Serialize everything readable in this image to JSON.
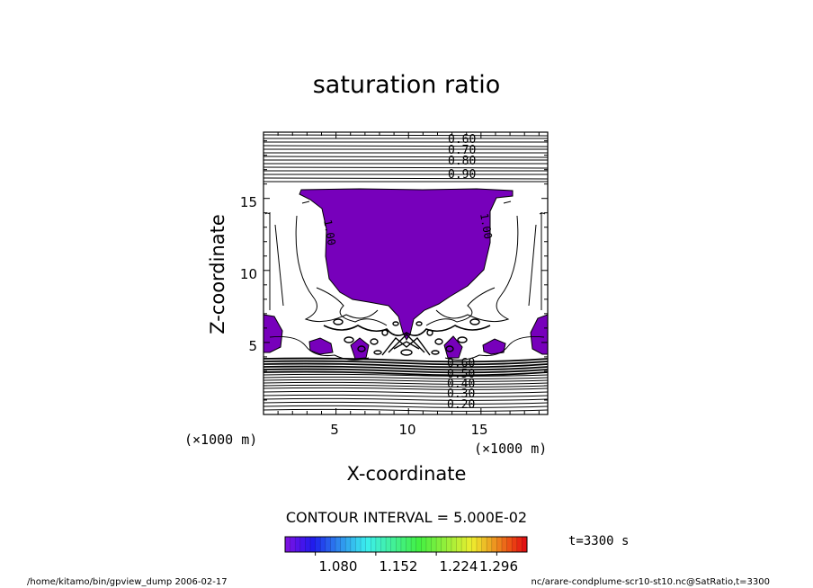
{
  "chart_data": {
    "type": "contour",
    "title": "saturation ratio",
    "xlabel": "X-coordinate",
    "ylabel": "Z-coordinate",
    "x_unit": "(×1000 m)",
    "y_unit": "(×1000 m)",
    "xlim": [
      0,
      19.6
    ],
    "ylim": [
      0,
      19.6
    ],
    "x_ticks": [
      5,
      10,
      15
    ],
    "y_ticks": [
      5,
      10,
      15
    ],
    "contour_interval_text": "CONTOUR INTERVAL = 5.000E-02",
    "time_text": "t=3300 s",
    "colorbar": {
      "tick_labels": [
        "1.080",
        "1.152",
        "1.224",
        "1.296"
      ],
      "ticks": [
        1.08,
        1.152,
        1.224,
        1.296
      ],
      "range": [
        1.044,
        1.332
      ],
      "fill_color": "#7700bb"
    },
    "upper_contour_labels": [
      "0.60",
      "0.70",
      "0.80",
      "0.90"
    ],
    "lower_contour_labels": [
      "0.60",
      "0.50",
      "0.40",
      "0.30",
      "0.20"
    ],
    "plume_labels": [
      "1.00",
      "1.00"
    ]
  },
  "footer": {
    "left": "/home/kitamo/bin/gpview_dump  2006-02-17",
    "right": "nc/arare-condplume-scr10-st10.nc@SatRatio,t=3300"
  }
}
